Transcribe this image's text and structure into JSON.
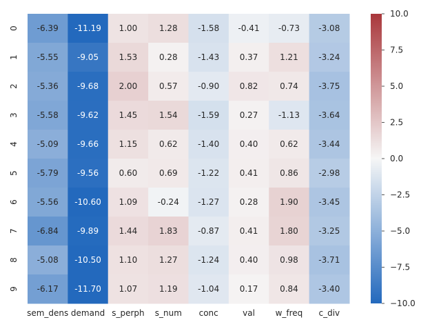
{
  "chart_data": {
    "type": "heatmap",
    "title": "",
    "xlabel": "",
    "ylabel": "",
    "x_categories": [
      "sem_dens",
      "demand",
      "s_perph",
      "s_num",
      "conc",
      "val",
      "w_freq",
      "c_div"
    ],
    "y_categories": [
      "0",
      "1",
      "2",
      "3",
      "4",
      "5",
      "6",
      "7",
      "8",
      "9"
    ],
    "values": [
      [
        -6.39,
        -11.19,
        1.0,
        1.28,
        -1.58,
        -0.41,
        -0.73,
        -3.08
      ],
      [
        -5.55,
        -9.05,
        1.53,
        0.28,
        -1.43,
        0.37,
        1.21,
        -3.24
      ],
      [
        -5.36,
        -9.68,
        2.0,
        0.57,
        -0.9,
        0.82,
        0.74,
        -3.75
      ],
      [
        -5.58,
        -9.62,
        1.45,
        1.54,
        -1.59,
        0.27,
        -1.13,
        -3.64
      ],
      [
        -5.09,
        -9.66,
        1.15,
        0.62,
        -1.4,
        0.4,
        0.62,
        -3.44
      ],
      [
        -5.79,
        -9.56,
        0.6,
        0.69,
        -1.22,
        0.41,
        0.86,
        -2.98
      ],
      [
        -5.56,
        -10.6,
        1.09,
        -0.24,
        -1.27,
        0.28,
        1.9,
        -3.45
      ],
      [
        -6.84,
        -9.89,
        1.44,
        1.83,
        -0.87,
        0.41,
        1.8,
        -3.25
      ],
      [
        -5.08,
        -10.5,
        1.1,
        1.27,
        -1.24,
        0.4,
        0.98,
        -3.71
      ],
      [
        -6.17,
        -11.7,
        1.07,
        1.19,
        -1.04,
        0.17,
        0.84,
        -3.4
      ]
    ],
    "colorbar": {
      "vmin": -10.0,
      "vmax": 10.0,
      "ticks": [
        10.0,
        7.5,
        5.0,
        2.5,
        0.0,
        -2.5,
        -5.0,
        -7.5,
        -10.0
      ],
      "tick_labels": [
        "10.0",
        "7.5",
        "5.0",
        "2.5",
        "0.0",
        "−2.5",
        "−5.0",
        "−7.5",
        "−10.0"
      ],
      "colormap": "vlag"
    },
    "colors": {
      "low": "#2369bd",
      "mid": "#f6f6f6",
      "high": "#a9373b"
    },
    "grid": false,
    "annotations": "cell values with two decimals"
  }
}
